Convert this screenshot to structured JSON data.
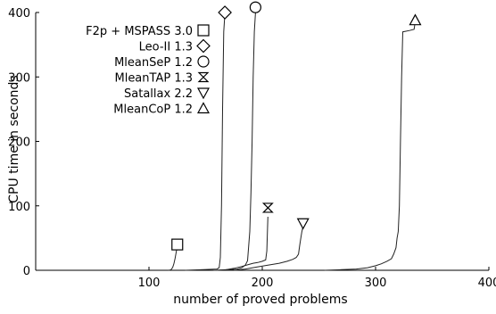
{
  "chart_data": {
    "type": "line",
    "title": "",
    "xlabel": "number of proved problems",
    "ylabel": "CPU time in seconds",
    "xlim": [
      0,
      400
    ],
    "ylim": [
      0,
      400
    ],
    "xticks": [
      {
        "value": 100,
        "label": "100"
      },
      {
        "value": 200,
        "label": "200"
      },
      {
        "value": 300,
        "label": "300"
      },
      {
        "value": 400,
        "label": "400"
      }
    ],
    "yticks": [
      {
        "value": 0,
        "label": "0"
      },
      {
        "value": 100,
        "label": "100"
      },
      {
        "value": 200,
        "label": "200"
      },
      {
        "value": 300,
        "label": "300"
      },
      {
        "value": 400,
        "label": "400"
      }
    ],
    "grid": false,
    "legend_position": "top-left",
    "series": [
      {
        "name": "F2p + MSPASS 3.0",
        "marker": "square",
        "points": [
          [
            117,
            0
          ],
          [
            119,
            0.5
          ],
          [
            120,
            2
          ],
          [
            121,
            5
          ],
          [
            122,
            10
          ],
          [
            123,
            18
          ],
          [
            124,
            28
          ],
          [
            125,
            38
          ]
        ],
        "marker_at": [
          125,
          40
        ]
      },
      {
        "name": "Leo-II 1.3",
        "marker": "diamond",
        "points": [
          [
            132,
            0
          ],
          [
            140,
            0.5
          ],
          [
            148,
            1
          ],
          [
            155,
            1.5
          ],
          [
            160,
            2
          ],
          [
            162,
            4
          ],
          [
            163,
            20
          ],
          [
            164,
            100
          ],
          [
            165,
            250
          ],
          [
            166,
            370
          ],
          [
            167,
            398
          ]
        ],
        "marker_at": [
          167,
          400
        ]
      },
      {
        "name": "MleanSeP 1.2",
        "marker": "circle",
        "points": [
          [
            157,
            0
          ],
          [
            165,
            0.5
          ],
          [
            172,
            1
          ],
          [
            178,
            2
          ],
          [
            182,
            4
          ],
          [
            185,
            8
          ],
          [
            187,
            15
          ],
          [
            189,
            60
          ],
          [
            190,
            120
          ],
          [
            191,
            200
          ],
          [
            192,
            300
          ],
          [
            193,
            370
          ],
          [
            194,
            400
          ]
        ],
        "marker_at": [
          194,
          408
        ]
      },
      {
        "name": "MleanTAP 1.3",
        "marker": "bowtie",
        "points": [
          [
            160,
            0
          ],
          [
            168,
            1
          ],
          [
            175,
            3
          ],
          [
            182,
            6
          ],
          [
            188,
            9
          ],
          [
            192,
            11
          ],
          [
            196,
            12
          ],
          [
            200,
            14
          ],
          [
            203,
            16
          ],
          [
            204,
            30
          ],
          [
            205,
            83
          ]
        ],
        "marker_at": [
          205,
          97
        ]
      },
      {
        "name": "Satallax 2.2",
        "marker": "triangle-down",
        "points": [
          [
            175,
            0
          ],
          [
            185,
            2
          ],
          [
            195,
            5
          ],
          [
            205,
            8
          ],
          [
            215,
            11
          ],
          [
            222,
            14
          ],
          [
            227,
            17
          ],
          [
            230,
            20
          ],
          [
            232,
            25
          ],
          [
            233,
            38
          ],
          [
            234,
            50
          ],
          [
            235,
            60
          ],
          [
            236,
            68
          ]
        ],
        "marker_at": [
          236,
          73
        ]
      },
      {
        "name": "MleanCoP 1.2",
        "marker": "triangle-up",
        "points": [
          [
            255,
            0
          ],
          [
            270,
            1
          ],
          [
            283,
            2
          ],
          [
            293,
            4
          ],
          [
            300,
            7
          ],
          [
            305,
            10
          ],
          [
            310,
            14
          ],
          [
            314,
            18
          ],
          [
            316,
            25
          ],
          [
            318,
            35
          ],
          [
            319,
            50
          ],
          [
            320,
            60
          ],
          [
            321,
            100
          ],
          [
            322,
            200
          ],
          [
            323,
            300
          ],
          [
            324,
            370
          ],
          [
            330,
            372
          ],
          [
            334,
            374
          ],
          [
            335,
            385
          ]
        ],
        "marker_at": [
          335,
          388
        ]
      }
    ]
  }
}
